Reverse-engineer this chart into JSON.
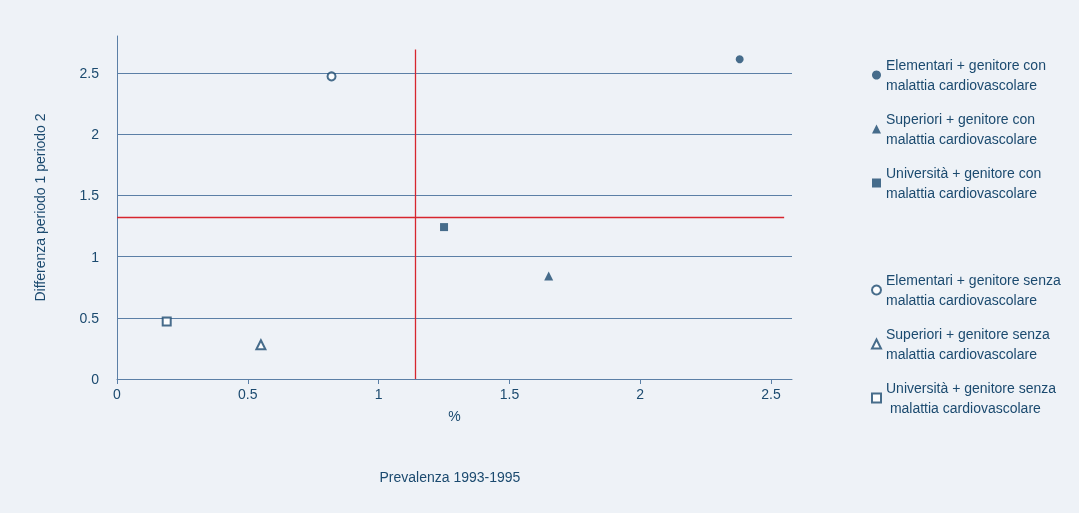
{
  "chart_data": {
    "type": "scatter",
    "xlabel": "%",
    "ylabel": "Differenza periodo 1 periodo 2",
    "annotations": [
      "Prevalenza 1993-1995"
    ],
    "xlim": [
      0,
      2.58
    ],
    "xticks": [
      0,
      0.5,
      1,
      1.5,
      2,
      2.5
    ],
    "ylim": [
      0,
      2.8
    ],
    "yticks": [
      0,
      0.5,
      1,
      1.5,
      2,
      2.5
    ],
    "grid": "y",
    "legend": "right",
    "series": [
      {
        "name": "Elementari + genitore con malattia cardiovascolare",
        "color": "#1b4a6f",
        "marker": "circle",
        "x": [
          2.38
        ],
        "values": [
          2.61
        ]
      },
      {
        "name": "Superiori + genitore con malattia cardiovascolare",
        "color": "#1b4a6f",
        "marker": "triangle",
        "x": [
          1.65
        ],
        "values": [
          0.84
        ]
      },
      {
        "name": "Università + genitore con malattia cardiovascolare",
        "color": "#1b4a6f",
        "marker": "square",
        "x": [
          1.25
        ],
        "values": [
          1.24
        ]
      },
      {
        "name": "Elementari + genitore senza malattia cardiovascolare",
        "color": "#1b4a6f",
        "marker": "circle-open",
        "x": [
          0.82
        ],
        "values": [
          2.47
        ]
      },
      {
        "name": "Superiori + genitore senza malattia cardiovascolare",
        "color": "#1b4a6f",
        "marker": "triangle-open",
        "x": [
          0.55
        ],
        "values": [
          0.28
        ]
      },
      {
        "name": "Università + genitore senza malattia cardiovascolare",
        "color": "#1b4a6f",
        "marker": "square-open",
        "x": [
          0.19
        ],
        "values": [
          0.47
        ]
      }
    ],
    "ref_lines": [
      {
        "axis": "x",
        "value": 1.14,
        "color": "#d7262e"
      },
      {
        "axis": "y",
        "value": 1.32,
        "color": "#d7262e"
      }
    ]
  }
}
